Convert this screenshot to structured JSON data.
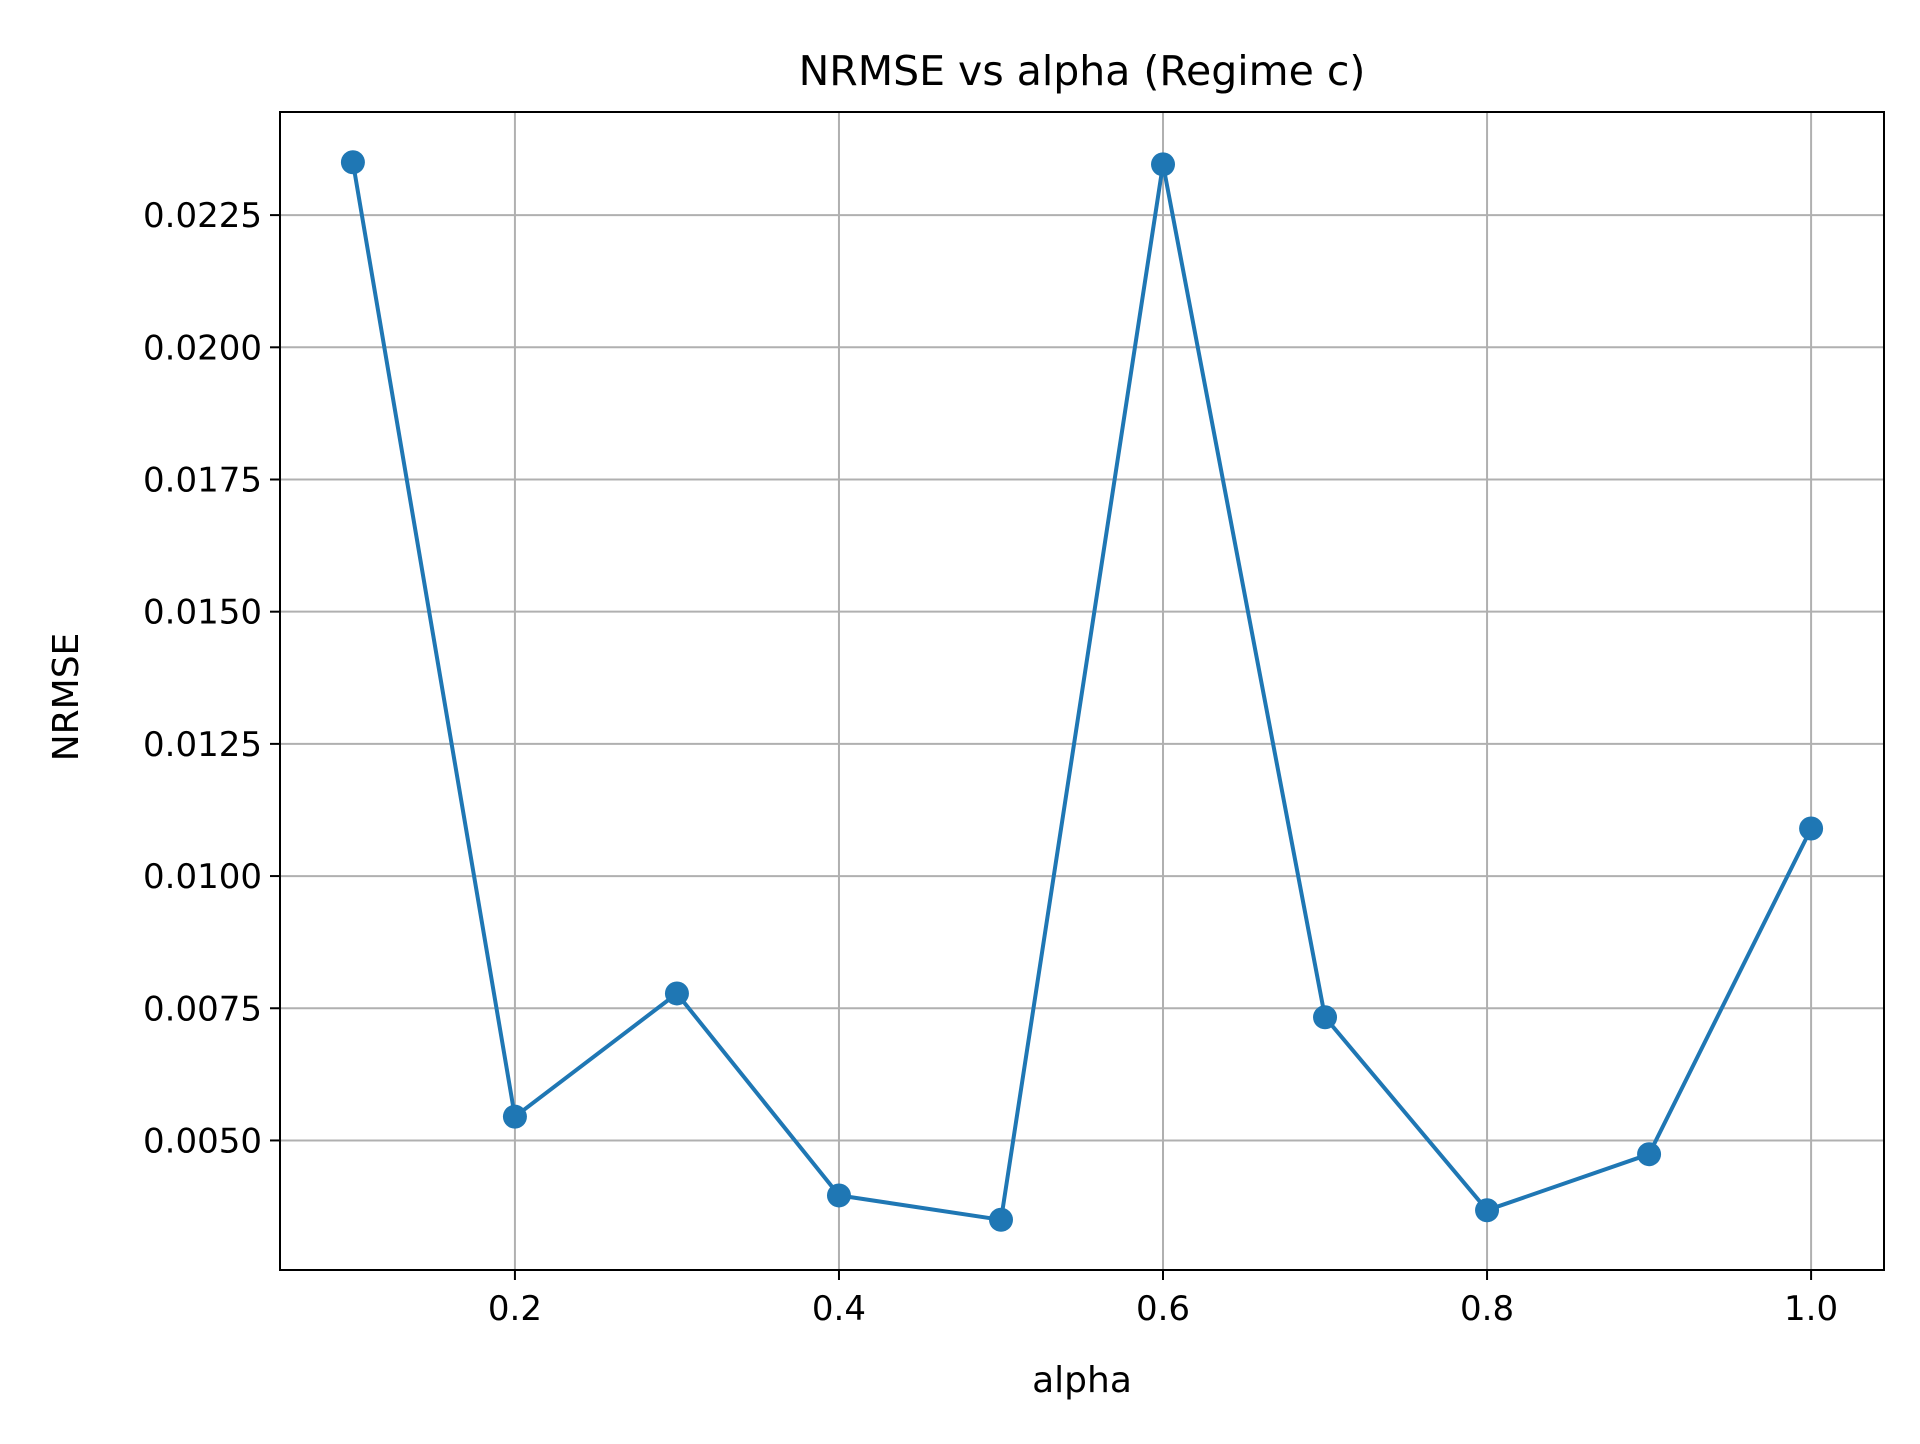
{
  "chart_data": {
    "type": "line",
    "title": "NRMSE vs alpha (Regime c)",
    "xlabel": "alpha",
    "ylabel": "NRMSE",
    "x": [
      0.1,
      0.2,
      0.3,
      0.4,
      0.5,
      0.6,
      0.7,
      0.8,
      0.9,
      1.0
    ],
    "series": [
      {
        "name": "",
        "values": [
          0.0235,
          0.00545,
          0.00778,
          0.00396,
          0.0035,
          0.02346,
          0.00733,
          0.00368,
          0.00474,
          0.0109
        ],
        "color": "#1f77b4",
        "marker": "circle"
      }
    ],
    "xlim": [
      0.055,
      1.045
    ],
    "ylim": [
      0.00255,
      0.02445
    ],
    "xticks": [
      0.2,
      0.4,
      0.6,
      0.8,
      1.0
    ],
    "xtick_labels": [
      "0.2",
      "0.4",
      "0.6",
      "0.8",
      "1.0"
    ],
    "yticks": [
      0.005,
      0.0075,
      0.01,
      0.0125,
      0.015,
      0.0175,
      0.02,
      0.0225
    ],
    "ytick_labels": [
      "0.0050",
      "0.0075",
      "0.0100",
      "0.0125",
      "0.0150",
      "0.0175",
      "0.0200",
      "0.0225"
    ],
    "grid": true,
    "grid_color": "#b0b0b0",
    "legend": "none"
  }
}
